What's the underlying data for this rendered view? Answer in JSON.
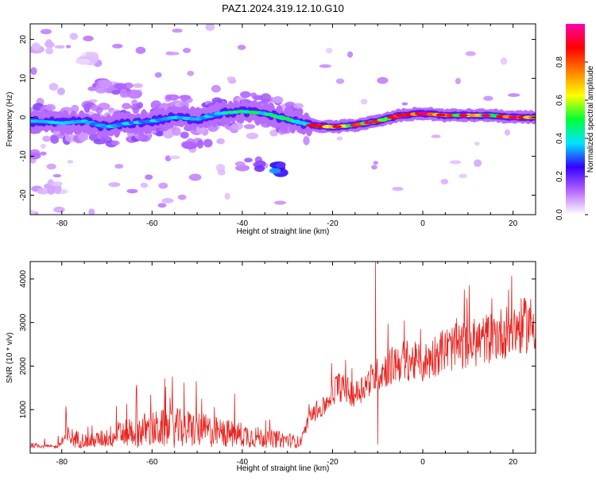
{
  "title": "PAZ1.2024.319.12.10.G10",
  "chart_data": [
    {
      "type": "heatmap",
      "xlabel": "Height of straight line (km)",
      "ylabel": "Frequency (Hz)",
      "xlim": [
        -87,
        25
      ],
      "ylim": [
        -25,
        24
      ],
      "xticks": [
        -80,
        -60,
        -40,
        -20,
        0,
        20
      ],
      "yticks": [
        -20,
        -10,
        0,
        10,
        20
      ],
      "colorbar": {
        "label": "Normalized spectral amplitude",
        "range": [
          0,
          1
        ],
        "ticks": [
          0.0,
          0.2,
          0.4,
          0.6,
          0.8
        ],
        "tick_labels": [
          "0.0",
          "0.2",
          "0.4",
          "0.6",
          "0.8"
        ],
        "colormap": [
          "#ffffff",
          "#b566ff",
          "#3300ff",
          "#00e5ff",
          "#00ff33",
          "#ffff00",
          "#ff8000",
          "#ff0000",
          "#ff00aa"
        ]
      },
      "ridge": [
        {
          "x": -85,
          "f": -1.0
        },
        {
          "x": -80,
          "f": -1.5
        },
        {
          "x": -75,
          "f": -1.0
        },
        {
          "x": -70,
          "f": -2.5
        },
        {
          "x": -65,
          "f": -1.5
        },
        {
          "x": -60,
          "f": -1.0
        },
        {
          "x": -55,
          "f": 0.0
        },
        {
          "x": -50,
          "f": -0.5
        },
        {
          "x": -45,
          "f": 1.0
        },
        {
          "x": -40,
          "f": 1.5
        },
        {
          "x": -35,
          "f": 1.0
        },
        {
          "x": -30,
          "f": -0.5
        },
        {
          "x": -25,
          "f": -2.0
        },
        {
          "x": -20,
          "f": -2.5
        },
        {
          "x": -15,
          "f": -2.0
        },
        {
          "x": -10,
          "f": -1.0
        },
        {
          "x": -5,
          "f": 0.5
        },
        {
          "x": 0,
          "f": 1.0
        },
        {
          "x": 5,
          "f": 0.5
        },
        {
          "x": 10,
          "f": 0.5
        },
        {
          "x": 15,
          "f": 0.5
        },
        {
          "x": 20,
          "f": 0.0
        },
        {
          "x": 25,
          "f": 0.0
        }
      ],
      "blobs": [
        {
          "x": -32,
          "f": -13,
          "amp": 0.35
        },
        {
          "x": -38,
          "f": -12,
          "amp": 0.2
        },
        {
          "x": -70,
          "f": 8,
          "amp": 0.15
        },
        {
          "x": -66,
          "f": 7,
          "amp": 0.15
        },
        {
          "x": -55,
          "f": 4,
          "amp": 0.15
        },
        {
          "x": -45,
          "f": 3,
          "amp": 0.2
        },
        {
          "x": -60,
          "f": -4,
          "amp": 0.2
        },
        {
          "x": -50,
          "f": -6,
          "amp": 0.15
        },
        {
          "x": -85,
          "f": 18,
          "amp": 0.08
        },
        {
          "x": -82,
          "f": -18,
          "amp": 0.08
        },
        {
          "x": -75,
          "f": 15,
          "amp": 0.06
        }
      ]
    },
    {
      "type": "line",
      "xlabel": "Height of straight line (km)",
      "ylabel": "SNR (10 * v/v)",
      "xlim": [
        -87,
        25
      ],
      "ylim": [
        0,
        4400
      ],
      "xticks": [
        -80,
        -60,
        -40,
        -20,
        0,
        20
      ],
      "yticks": [
        1000,
        2000,
        3000,
        4000
      ],
      "color": "#e8231f",
      "envelope": [
        {
          "x": -87,
          "y": 200
        },
        {
          "x": -81,
          "y": 150
        },
        {
          "x": -79,
          "y": 450
        },
        {
          "x": -74,
          "y": 300
        },
        {
          "x": -70,
          "y": 420
        },
        {
          "x": -65,
          "y": 600
        },
        {
          "x": -60,
          "y": 650
        },
        {
          "x": -55,
          "y": 700
        },
        {
          "x": -50,
          "y": 650
        },
        {
          "x": -45,
          "y": 550
        },
        {
          "x": -40,
          "y": 500
        },
        {
          "x": -35,
          "y": 400
        },
        {
          "x": -30,
          "y": 350
        },
        {
          "x": -27,
          "y": 280
        },
        {
          "x": -25,
          "y": 850
        },
        {
          "x": -22,
          "y": 1050
        },
        {
          "x": -19,
          "y": 1550
        },
        {
          "x": -15,
          "y": 1350
        },
        {
          "x": -12,
          "y": 1650
        },
        {
          "x": -8,
          "y": 1950
        },
        {
          "x": -4,
          "y": 2150
        },
        {
          "x": 0,
          "y": 2050
        },
        {
          "x": 4,
          "y": 2350
        },
        {
          "x": 8,
          "y": 2450
        },
        {
          "x": 12,
          "y": 2550
        },
        {
          "x": 16,
          "y": 2700
        },
        {
          "x": 20,
          "y": 2850
        },
        {
          "x": 25,
          "y": 3000
        }
      ],
      "spikes": [
        {
          "x": -10.5,
          "y": 4400
        },
        {
          "x": -10.0,
          "y": 200
        },
        {
          "x": 7.5,
          "y": 3100
        },
        {
          "x": -1.5,
          "y": 2200
        },
        {
          "x": -6.0,
          "y": 2400
        }
      ]
    }
  ]
}
